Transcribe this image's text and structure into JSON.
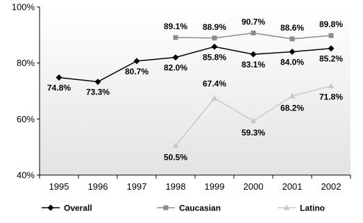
{
  "chart_data": {
    "type": "line",
    "title": "",
    "xlabel": "",
    "ylabel": "",
    "categories": [
      "1995",
      "1996",
      "1997",
      "1998",
      "1999",
      "2000",
      "2001",
      "2002"
    ],
    "ylim": [
      40,
      100
    ],
    "yticks": [
      40,
      60,
      80,
      100
    ],
    "ytick_labels": [
      "40%",
      "60%",
      "80%",
      "100%"
    ],
    "grid": false,
    "legend_position": "bottom",
    "series": [
      {
        "name": "Overall",
        "color": "#000000",
        "marker": "diamond",
        "values": [
          74.8,
          73.3,
          80.7,
          82.0,
          85.8,
          83.1,
          84.0,
          85.2
        ],
        "labels": [
          "74.8%",
          "73.3%",
          "80.7%",
          "82.0%",
          "85.8%",
          "83.1%",
          "84.0%",
          "85.2%"
        ]
      },
      {
        "name": "Caucasian",
        "color": "#8c8c8c",
        "marker": "square",
        "values": [
          null,
          null,
          null,
          89.1,
          88.9,
          90.7,
          88.6,
          89.8
        ],
        "labels": [
          "",
          "",
          "",
          "89.1%",
          "88.9%",
          "90.7%",
          "88.6%",
          "89.8%"
        ]
      },
      {
        "name": "Latino",
        "color": "#c8c8c8",
        "marker": "triangle",
        "values": [
          null,
          null,
          null,
          50.5,
          67.4,
          59.3,
          68.2,
          71.8
        ],
        "labels": [
          "",
          "",
          "",
          "50.5%",
          "67.4%",
          "59.3%",
          "68.2%",
          "71.8%"
        ]
      }
    ]
  }
}
